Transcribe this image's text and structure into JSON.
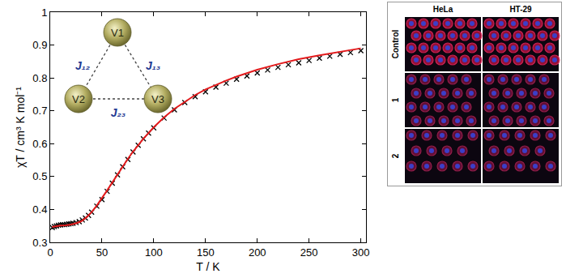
{
  "chart_data": {
    "type": "scatter",
    "x_label": "T / K",
    "y_label": "χT / cm³ K mol⁻¹",
    "xlim": [
      0,
      305
    ],
    "ylim": [
      0.3,
      1
    ],
    "xticks": [
      0,
      50,
      100,
      150,
      200,
      250,
      300
    ],
    "yticks": [
      0.3,
      0.4,
      0.5,
      0.6,
      0.7,
      0.8,
      0.9,
      1
    ],
    "grid": false,
    "series": [
      {
        "type": "scatter",
        "marker": "x",
        "color": "#000000",
        "x": [
          2,
          4,
          6,
          8,
          10,
          12,
          14,
          16,
          18,
          20,
          22,
          25,
          28,
          31,
          34,
          37,
          40,
          45,
          50,
          55,
          60,
          65,
          70,
          75,
          80,
          85,
          90,
          95,
          100,
          110,
          120,
          130,
          140,
          150,
          160,
          170,
          180,
          190,
          200,
          210,
          220,
          230,
          240,
          250,
          260,
          270,
          280,
          290,
          300
        ],
        "values": [
          0.345,
          0.348,
          0.35,
          0.352,
          0.353,
          0.354,
          0.354,
          0.355,
          0.356,
          0.357,
          0.358,
          0.36,
          0.363,
          0.368,
          0.374,
          0.382,
          0.392,
          0.41,
          0.43,
          0.455,
          0.48,
          0.505,
          0.53,
          0.552,
          0.575,
          0.595,
          0.615,
          0.632,
          0.648,
          0.678,
          0.703,
          0.725,
          0.743,
          0.758,
          0.772,
          0.784,
          0.796,
          0.806,
          0.815,
          0.824,
          0.832,
          0.84,
          0.846,
          0.853,
          0.86,
          0.866,
          0.872,
          0.877,
          0.883
        ]
      },
      {
        "type": "line",
        "line_style": "solid",
        "color": "#e31a1c",
        "x": [
          1.8,
          5,
          10,
          15,
          20,
          25,
          30,
          35,
          40,
          45,
          50,
          55,
          60,
          65,
          70,
          75,
          80,
          90,
          100,
          110,
          120,
          130,
          140,
          150,
          160,
          170,
          180,
          190,
          200,
          220,
          240,
          260,
          280,
          300
        ],
        "values": [
          0.347,
          0.349,
          0.351,
          0.352,
          0.354,
          0.358,
          0.364,
          0.376,
          0.392,
          0.412,
          0.434,
          0.458,
          0.482,
          0.507,
          0.531,
          0.554,
          0.576,
          0.615,
          0.65,
          0.68,
          0.706,
          0.728,
          0.748,
          0.765,
          0.779,
          0.792,
          0.804,
          0.815,
          0.825,
          0.842,
          0.857,
          0.869,
          0.88,
          0.89
        ]
      }
    ]
  },
  "diagram": {
    "nodes": [
      "V1",
      "V2",
      "V3"
    ],
    "edges": [
      {
        "from": "V1",
        "to": "V2",
        "label": "J₁₂"
      },
      {
        "from": "V1",
        "to": "V3",
        "label": "J₁₃"
      },
      {
        "from": "V2",
        "to": "V3",
        "label": "J₂₃"
      }
    ]
  },
  "microscopy": {
    "columns": [
      "HeLa",
      "HT-29"
    ],
    "rows": [
      "Control",
      "1",
      "2"
    ]
  }
}
